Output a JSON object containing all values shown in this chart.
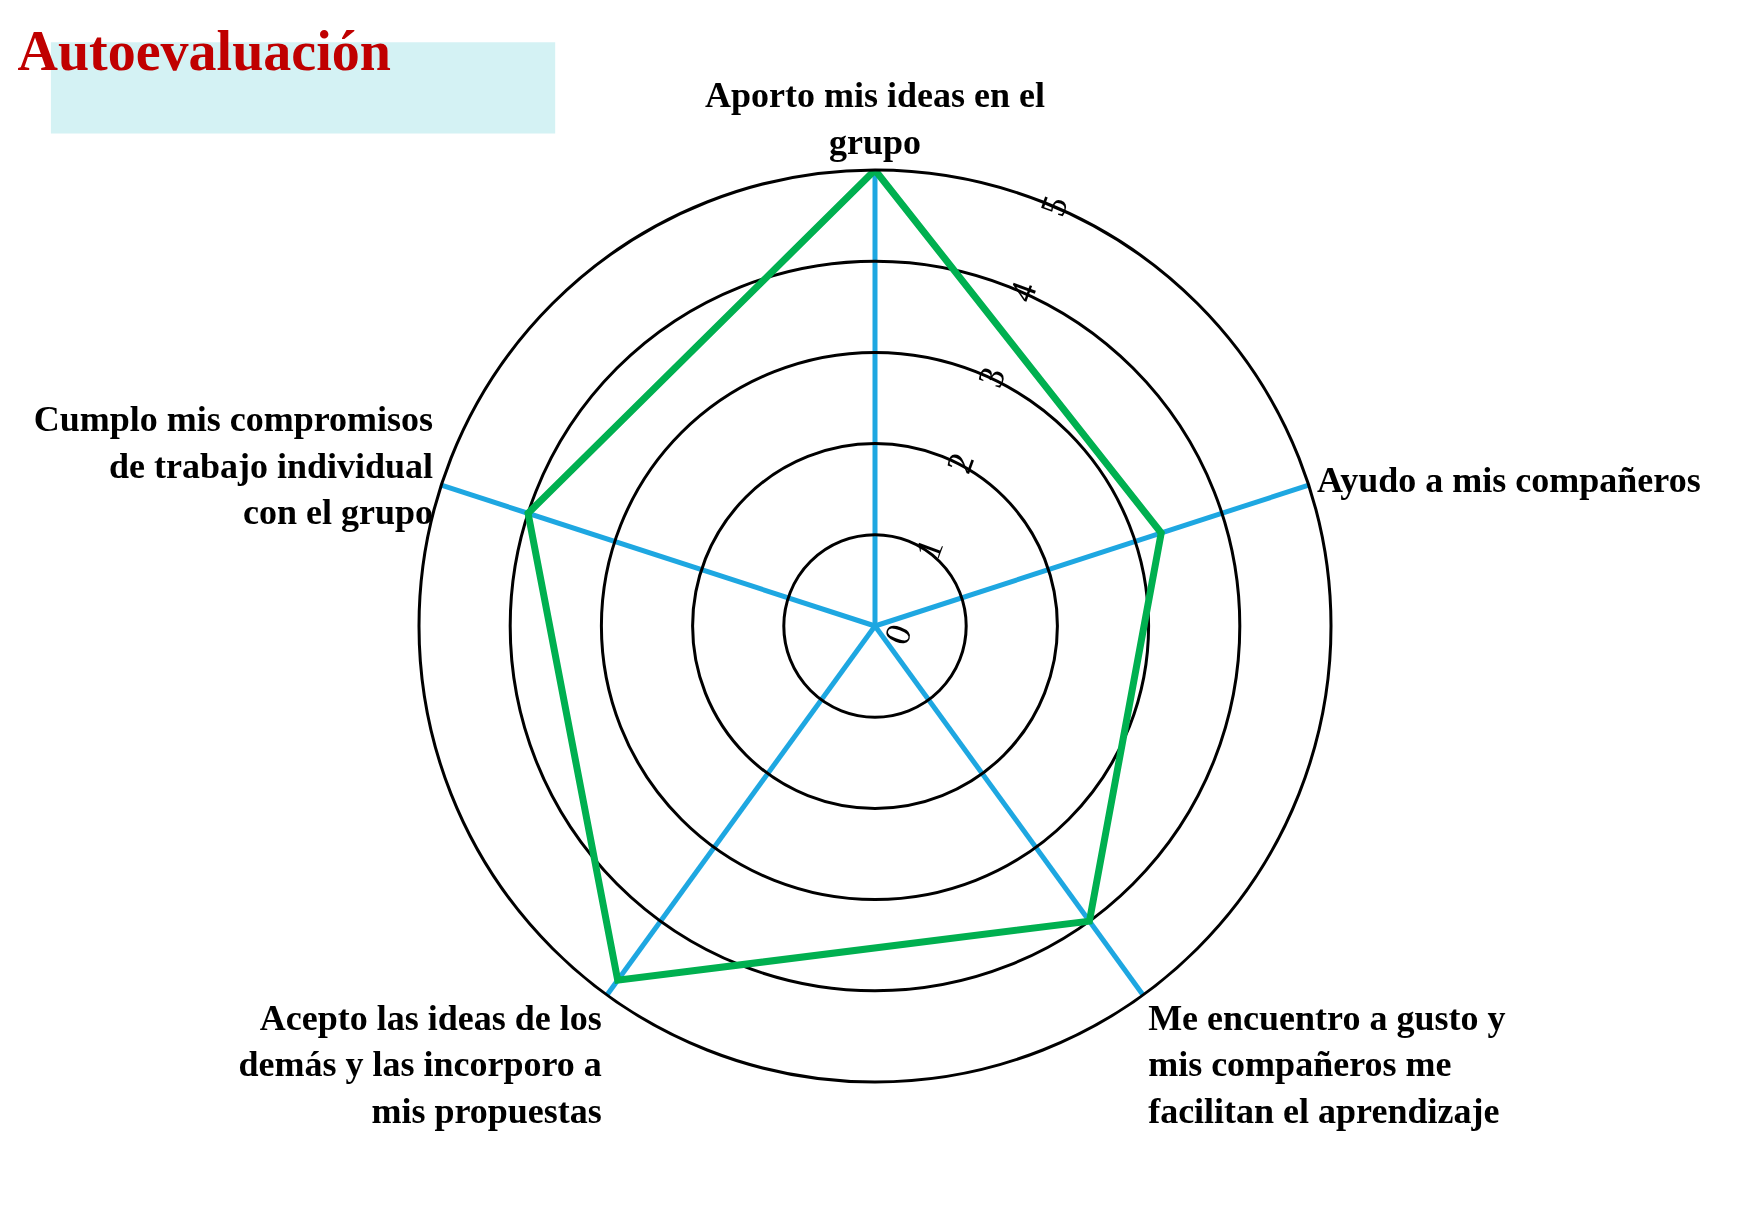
{
  "chart_data": {
    "type": "radar",
    "title": "Autoevaluación",
    "categories": [
      "Aporto mis ideas en el grupo",
      "Ayudo a mis compañeros",
      "Me encuentro a gusto y mis compañeros me facilitan el aprendizaje",
      "Acepto las ideas de los demás y las incorporo a mis propuestas",
      "Cumplo mis compromisos de trabajo individual con el grupo"
    ],
    "series": [
      {
        "color": "#00b050",
        "values": [
          5,
          3.3,
          4,
          4.8,
          4
        ]
      }
    ],
    "ylim": [
      0,
      5
    ],
    "yticks": [
      0,
      1,
      2,
      3,
      4,
      5
    ],
    "grid": true,
    "marker": "none",
    "line_style": "solid"
  }
}
